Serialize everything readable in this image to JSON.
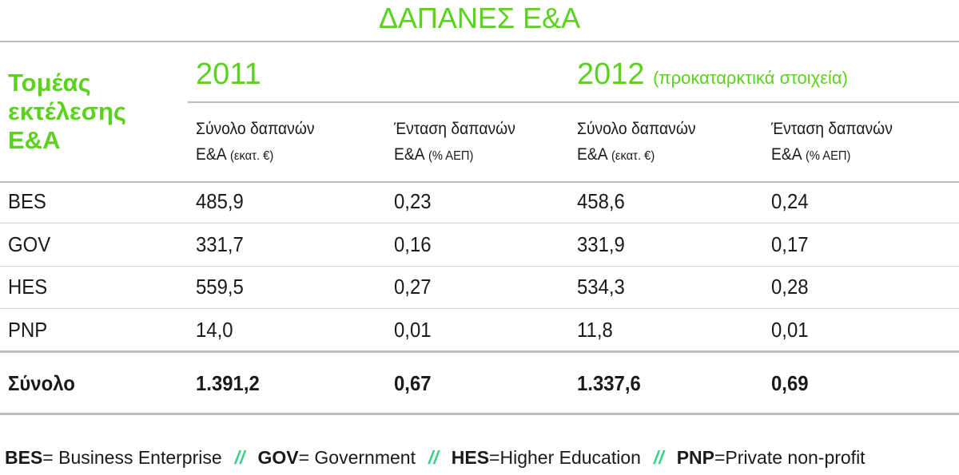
{
  "title": "ΔΑΠΑΝΕΣ Ε&Α",
  "table": {
    "corner_header": [
      "Τομέας",
      "εκτέλεσης",
      "Ε&Α"
    ],
    "years": [
      {
        "year": "2011"
      },
      {
        "year": "2012",
        "note": "(προκαταρκτικά στοιχεία)"
      }
    ],
    "sub_headers": [
      {
        "line1": "Σύνολο δαπανών",
        "line2": "Ε&Α",
        "unit": "(εκατ. €)"
      },
      {
        "line1": "Ένταση δαπανών",
        "line2": "Ε&Α",
        "unit": "(% ΑΕΠ)"
      },
      {
        "line1": "Σύνολο δαπανών",
        "line2": "Ε&Α",
        "unit": "(εκατ. €)"
      },
      {
        "line1": "Ένταση δαπανών",
        "line2": "Ε&Α",
        "unit": "(% ΑΕΠ)"
      }
    ],
    "rows": [
      [
        "BES",
        "485,9",
        "0,23",
        "458,6",
        "0,24"
      ],
      [
        "GOV",
        "331,7",
        "0,16",
        "331,9",
        "0,17"
      ],
      [
        "HES",
        "559,5",
        "0,27",
        "534,3",
        "0,28"
      ],
      [
        "PNP",
        "14,0",
        "0,01",
        "11,8",
        "0,01"
      ]
    ],
    "total_row": [
      "Σύνολο",
      "1.391,2",
      "0,67",
      "1.337,6",
      "0,69"
    ]
  },
  "footer": {
    "items": [
      {
        "abbr": "BES",
        "text": "= Business Enterprise"
      },
      {
        "abbr": "GOV",
        "text": "= Government"
      },
      {
        "abbr": "HES",
        "text": "=Higher Education"
      },
      {
        "abbr": "PNP",
        "text": "=Private non-profit"
      }
    ],
    "separators": [
      "//",
      "//",
      "//"
    ]
  }
}
